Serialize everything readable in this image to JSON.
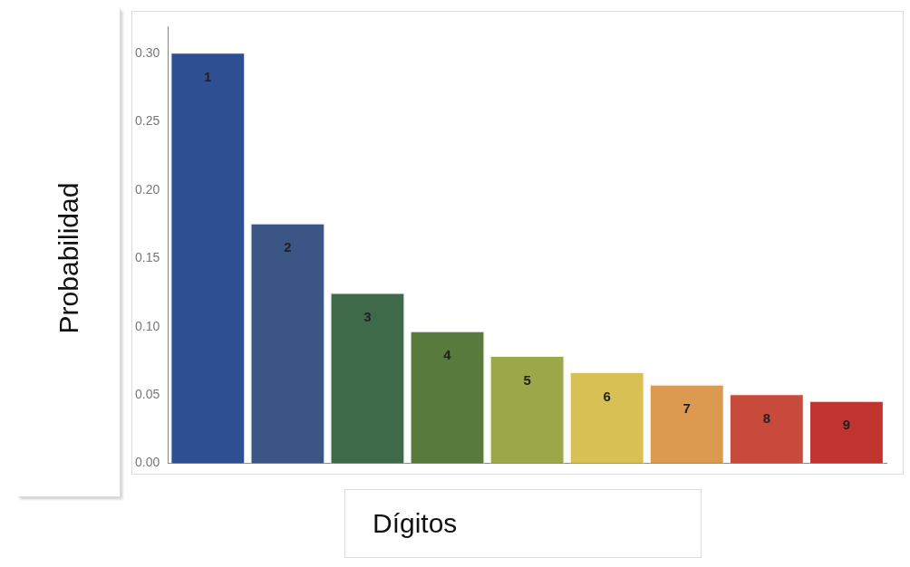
{
  "chart_data": {
    "type": "bar",
    "xlabel": "Dígitos",
    "ylabel": "Probabilidad",
    "categories": [
      "1",
      "2",
      "3",
      "4",
      "5",
      "6",
      "7",
      "8",
      "9"
    ],
    "values": [
      0.301,
      0.176,
      0.125,
      0.097,
      0.079,
      0.067,
      0.058,
      0.051,
      0.046
    ],
    "colors": [
      "#2f4f93",
      "#3b5584",
      "#3e6a4a",
      "#587a3c",
      "#9aa84a",
      "#d8c055",
      "#dc9a50",
      "#c84a3a",
      "#c0342f"
    ],
    "ylim": [
      0,
      0.32
    ],
    "yticks": [
      {
        "value": 0,
        "label": "0.00"
      },
      {
        "value": 0.05,
        "label": "0.05"
      },
      {
        "value": 0.1,
        "label": "0.10"
      },
      {
        "value": 0.15,
        "label": "0.15"
      },
      {
        "value": 0.2,
        "label": "0.20"
      },
      {
        "value": 0.25,
        "label": "0.25"
      },
      {
        "value": 0.3,
        "label": "0.30"
      }
    ],
    "grid": false,
    "legend": false,
    "tick_labels": "y"
  }
}
